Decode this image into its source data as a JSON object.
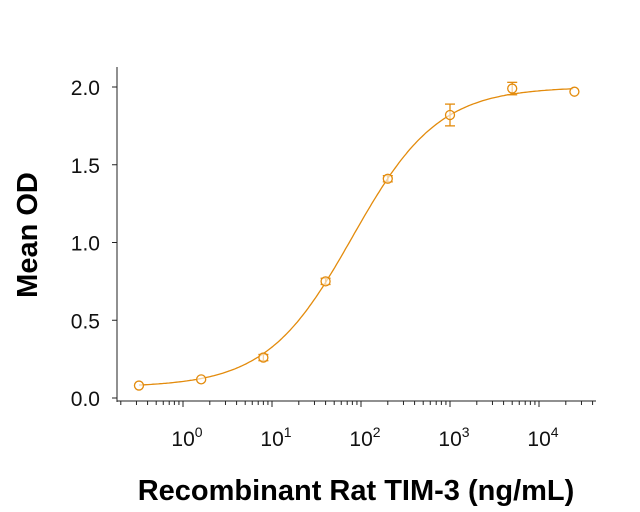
{
  "chart_data": {
    "type": "scatter",
    "xlabel": "Recombinant Rat TIM-3 (ng/mL)",
    "ylabel": "Mean OD",
    "x_scale": "log",
    "xlim": [
      0.2,
      45000
    ],
    "ylim": [
      0,
      2.1
    ],
    "x_tick_labels": [
      {
        "value": 1,
        "base": "10",
        "exp": "0"
      },
      {
        "value": 10,
        "base": "10",
        "exp": "1"
      },
      {
        "value": 100,
        "base": "10",
        "exp": "2"
      },
      {
        "value": 1000,
        "base": "10",
        "exp": "3"
      },
      {
        "value": 10000,
        "base": "10",
        "exp": "4"
      }
    ],
    "y_ticks": [
      0.0,
      0.5,
      1.0,
      1.5,
      2.0
    ],
    "y_tick_labels": [
      "0.0",
      "0.5",
      "1.0",
      "1.5",
      "2.0"
    ],
    "grid": false,
    "color": "#E38B0C",
    "series": [
      {
        "x": [
          0.32,
          1.6,
          8,
          40,
          200,
          1000,
          5000,
          25000
        ],
        "y": [
          0.08,
          0.12,
          0.26,
          0.75,
          1.41,
          1.82,
          1.99,
          1.97
        ],
        "error": [
          0.01,
          0.01,
          0.02,
          0.02,
          0.02,
          0.07,
          0.04,
          0.01
        ],
        "fit": {
          "model": "4PL",
          "bottom": 0.07,
          "top": 2.0,
          "ec50": 80,
          "hill": 0.9
        }
      }
    ]
  }
}
